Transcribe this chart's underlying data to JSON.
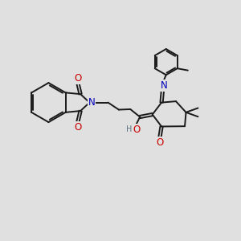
{
  "background_color": "#e0e0e0",
  "bond_color": "#1a1a1a",
  "bond_width": 1.4,
  "N_color": "#0000bb",
  "O_color": "#cc0000",
  "H_color": "#607080",
  "font_size": 7.5,
  "figsize": [
    3.0,
    3.0
  ],
  "dpi": 100,
  "xlim": [
    0.0,
    10.0
  ],
  "ylim": [
    0.0,
    10.0
  ]
}
